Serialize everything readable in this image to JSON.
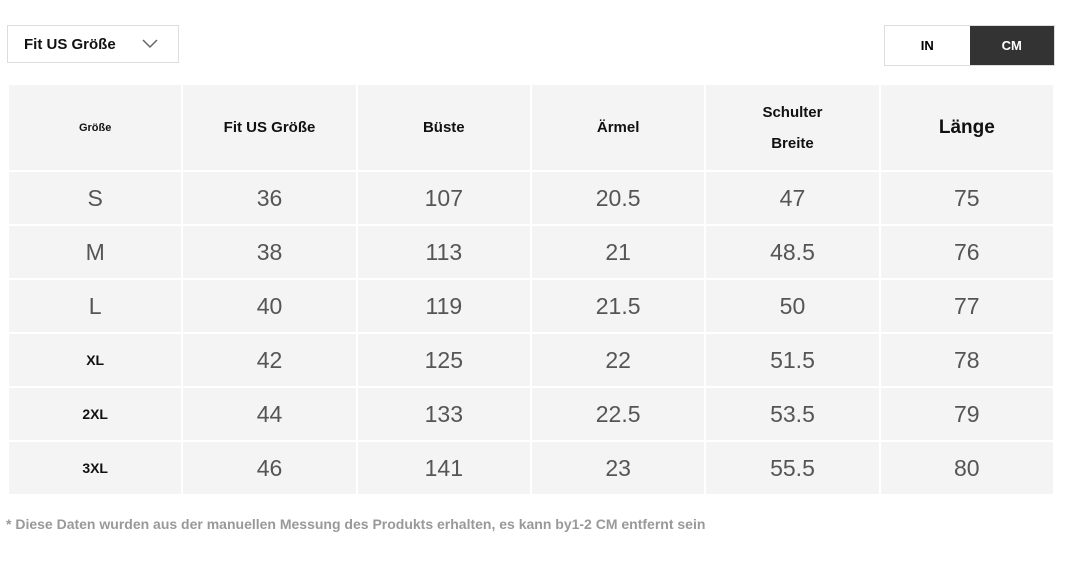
{
  "selector": {
    "label": "Fit US Größe"
  },
  "units": {
    "options": [
      "IN",
      "CM"
    ],
    "active": 1
  },
  "table": {
    "headers": [
      "Größe",
      "Fit US Größe",
      "Büste",
      "Ärmel",
      "Schulter Breite",
      "Länge"
    ],
    "rows": [
      [
        "S",
        "36",
        "107",
        "20.5",
        "47",
        "75"
      ],
      [
        "M",
        "38",
        "113",
        "21",
        "48.5",
        "76"
      ],
      [
        "L",
        "40",
        "119",
        "21.5",
        "50",
        "77"
      ],
      [
        "XL",
        "42",
        "125",
        "22",
        "51.5",
        "78"
      ],
      [
        "2XL",
        "44",
        "133",
        "22.5",
        "53.5",
        "79"
      ],
      [
        "3XL",
        "46",
        "141",
        "23",
        "55.5",
        "80"
      ]
    ]
  },
  "footnote": "* Diese Daten wurden aus der manuellen Messung des Produkts erhalten, es kann by1-2 CM entfernt sein"
}
